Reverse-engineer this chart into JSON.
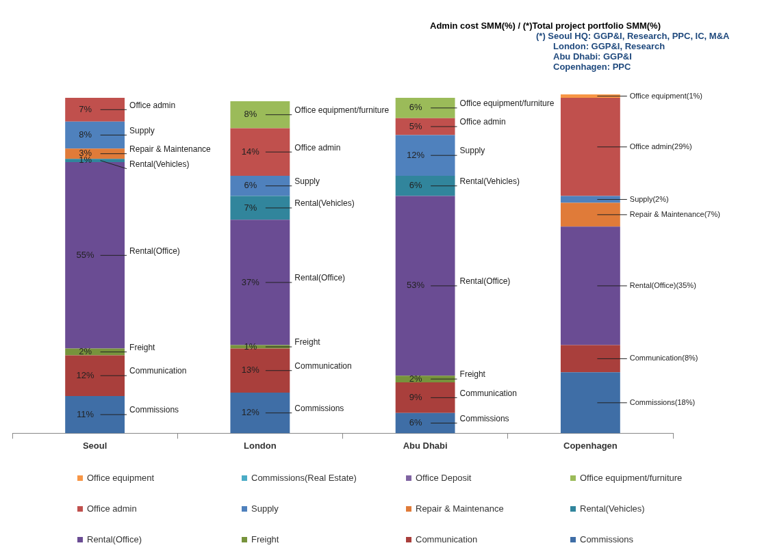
{
  "chart_data": {
    "type": "bar",
    "stacked": true,
    "tick_labels": "x",
    "legend": "bottom",
    "title": "Admin cost SMM(%) / (*)Total project portfolio SMM(%)",
    "categories": [
      "Seoul",
      "London",
      "Abu Dhabi",
      "Copenhagen"
    ],
    "series": [
      {
        "name": "Commissions",
        "color": "#3f6ea6",
        "values": [
          11,
          12,
          6,
          18
        ],
        "value_labels": [
          "11%",
          "12%",
          "6%",
          "Commissions(18%)"
        ]
      },
      {
        "name": "Communication",
        "color": "#a93f3c",
        "values": [
          12,
          13,
          9,
          8
        ],
        "value_labels": [
          "12%",
          "13%",
          "9%",
          "Communication(8%)"
        ]
      },
      {
        "name": "Freight",
        "color": "#77933c",
        "values": [
          2,
          1,
          2,
          null
        ],
        "value_labels": [
          "2%",
          "1%",
          "2%",
          null
        ]
      },
      {
        "name": "Rental(Office)",
        "color": "#6a4c93",
        "values": [
          55,
          37,
          53,
          35
        ],
        "value_labels": [
          "55%",
          "37%",
          "53%",
          "Rental(Office)(35%)"
        ]
      },
      {
        "name": "Rental(Vehicles)",
        "color": "#31859c",
        "values": [
          1,
          7,
          6,
          null
        ],
        "value_labels": [
          "1%",
          "7%",
          "6%",
          null
        ]
      },
      {
        "name": "Repair & Maintenance",
        "color": "#e07b39",
        "values": [
          3,
          null,
          null,
          7
        ],
        "value_labels": [
          "3%",
          null,
          null,
          "Repair & Maintenance(7%)"
        ]
      },
      {
        "name": "Supply",
        "color": "#4f81bd",
        "values": [
          8,
          6,
          12,
          2
        ],
        "value_labels": [
          "8%",
          "6%",
          "12%",
          "Supply(2%)"
        ]
      },
      {
        "name": "Office admin",
        "color": "#c0504d",
        "values": [
          7,
          14,
          5,
          29
        ],
        "value_labels": [
          "7%",
          "14%",
          "5%",
          "Office admin(29%)"
        ]
      },
      {
        "name": "Office equipment/furniture",
        "color": "#9bbb59",
        "values": [
          null,
          8,
          6,
          null
        ],
        "value_labels": [
          null,
          "8%",
          "6%",
          null
        ]
      },
      {
        "name": "Office Deposit",
        "color": "#8064a2",
        "values": [
          null,
          null,
          null,
          null
        ]
      },
      {
        "name": "Commissions(Real Estate)",
        "color": "#4bacc6",
        "values": [
          null,
          null,
          null,
          null
        ]
      },
      {
        "name": "Office equipment",
        "color": "#f79646",
        "values": [
          null,
          null,
          null,
          1
        ],
        "value_labels": [
          null,
          null,
          null,
          "Office equipment(1%)"
        ]
      }
    ],
    "annotations": [
      "(*) Seoul HQ: GGP&I, Research, PPC, IC, M&A",
      "London: GGP&I, Research",
      "Abu Dhabi: GGP&I",
      "Copenhagen: PPC"
    ]
  }
}
